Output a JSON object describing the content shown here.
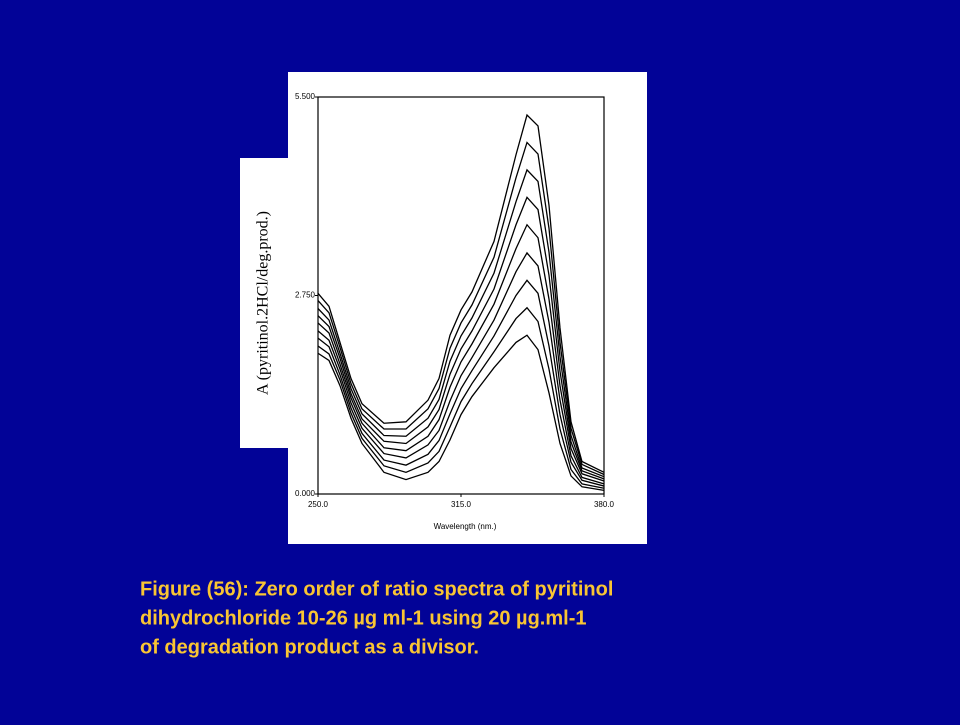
{
  "chart_data": {
    "type": "line",
    "y_label": "A (pyritinol.2HCl/deg.prod.)",
    "x_label": "Wavelength (nm.)",
    "caption": [
      "Figure (56): Zero order of ratio spectra of pyritinol",
      "dihydrochloride 10-26 µg ml-1      using 20 µg.ml-1",
      "of degradation product as a divisor."
    ],
    "x": [
      250,
      255,
      260,
      265,
      270,
      280,
      290,
      300,
      305,
      310,
      315,
      320,
      330,
      340,
      345,
      350,
      355,
      360,
      365,
      370,
      380
    ],
    "xlim": [
      250,
      380
    ],
    "xticks": [
      {
        "value": 250,
        "label": "250.0"
      },
      {
        "value": 315,
        "label": "315.0"
      },
      {
        "value": 380,
        "label": "380.0"
      }
    ],
    "ylim": [
      0,
      5.5
    ],
    "yticks": [
      {
        "value": 0,
        "label": "0.000"
      },
      {
        "value": 2.75,
        "label": "2.750"
      },
      {
        "value": 5.5,
        "label": "5.500"
      }
    ],
    "series": [
      {
        "color": "#000000",
        "values": [
          1.95,
          1.85,
          1.5,
          1.05,
          0.7,
          0.3,
          0.2,
          0.3,
          0.45,
          0.75,
          1.1,
          1.35,
          1.75,
          2.1,
          2.2,
          2.0,
          1.4,
          0.7,
          0.25,
          0.1,
          0.05
        ]
      },
      {
        "color": "#000000",
        "values": [
          2.05,
          1.94,
          1.58,
          1.12,
          0.77,
          0.39,
          0.3,
          0.43,
          0.59,
          0.93,
          1.28,
          1.53,
          1.97,
          2.43,
          2.58,
          2.39,
          1.73,
          0.9,
          0.34,
          0.14,
          0.08
        ]
      },
      {
        "color": "#000000",
        "values": [
          2.16,
          2.04,
          1.65,
          1.19,
          0.84,
          0.47,
          0.4,
          0.55,
          0.74,
          1.11,
          1.46,
          1.71,
          2.19,
          2.75,
          2.96,
          2.78,
          2.05,
          1.1,
          0.44,
          0.19,
          0.11
        ]
      },
      {
        "color": "#000000",
        "values": [
          2.26,
          2.13,
          1.73,
          1.26,
          0.91,
          0.56,
          0.5,
          0.68,
          0.88,
          1.29,
          1.64,
          1.89,
          2.41,
          3.08,
          3.34,
          3.16,
          2.38,
          1.3,
          0.53,
          0.23,
          0.14
        ]
      },
      {
        "color": "#000000",
        "values": [
          2.37,
          2.23,
          1.8,
          1.33,
          0.98,
          0.64,
          0.6,
          0.8,
          1.03,
          1.48,
          1.83,
          2.08,
          2.63,
          3.4,
          3.73,
          3.55,
          2.7,
          1.5,
          0.63,
          0.28,
          0.18
        ]
      },
      {
        "color": "#000000",
        "values": [
          2.47,
          2.32,
          1.88,
          1.39,
          1.04,
          0.73,
          0.7,
          0.93,
          1.17,
          1.66,
          2.01,
          2.26,
          2.84,
          3.73,
          4.11,
          3.94,
          3.03,
          1.7,
          0.72,
          0.32,
          0.21
        ]
      },
      {
        "color": "#000000",
        "values": [
          2.57,
          2.41,
          1.95,
          1.46,
          1.11,
          0.81,
          0.8,
          1.05,
          1.31,
          1.84,
          2.19,
          2.44,
          3.06,
          4.05,
          4.49,
          4.33,
          3.35,
          1.9,
          0.81,
          0.36,
          0.24
        ]
      },
      {
        "color": "#000000",
        "values": [
          2.68,
          2.51,
          2.03,
          1.53,
          1.18,
          0.9,
          0.9,
          1.18,
          1.46,
          2.02,
          2.37,
          2.62,
          3.28,
          4.38,
          4.87,
          4.71,
          3.68,
          2.1,
          0.91,
          0.41,
          0.27
        ]
      },
      {
        "color": "#000000",
        "values": [
          2.78,
          2.6,
          2.1,
          1.6,
          1.25,
          0.98,
          1.0,
          1.3,
          1.6,
          2.2,
          2.55,
          2.8,
          3.5,
          4.7,
          5.25,
          5.1,
          4.0,
          2.3,
          1.0,
          0.45,
          0.3
        ]
      }
    ]
  }
}
